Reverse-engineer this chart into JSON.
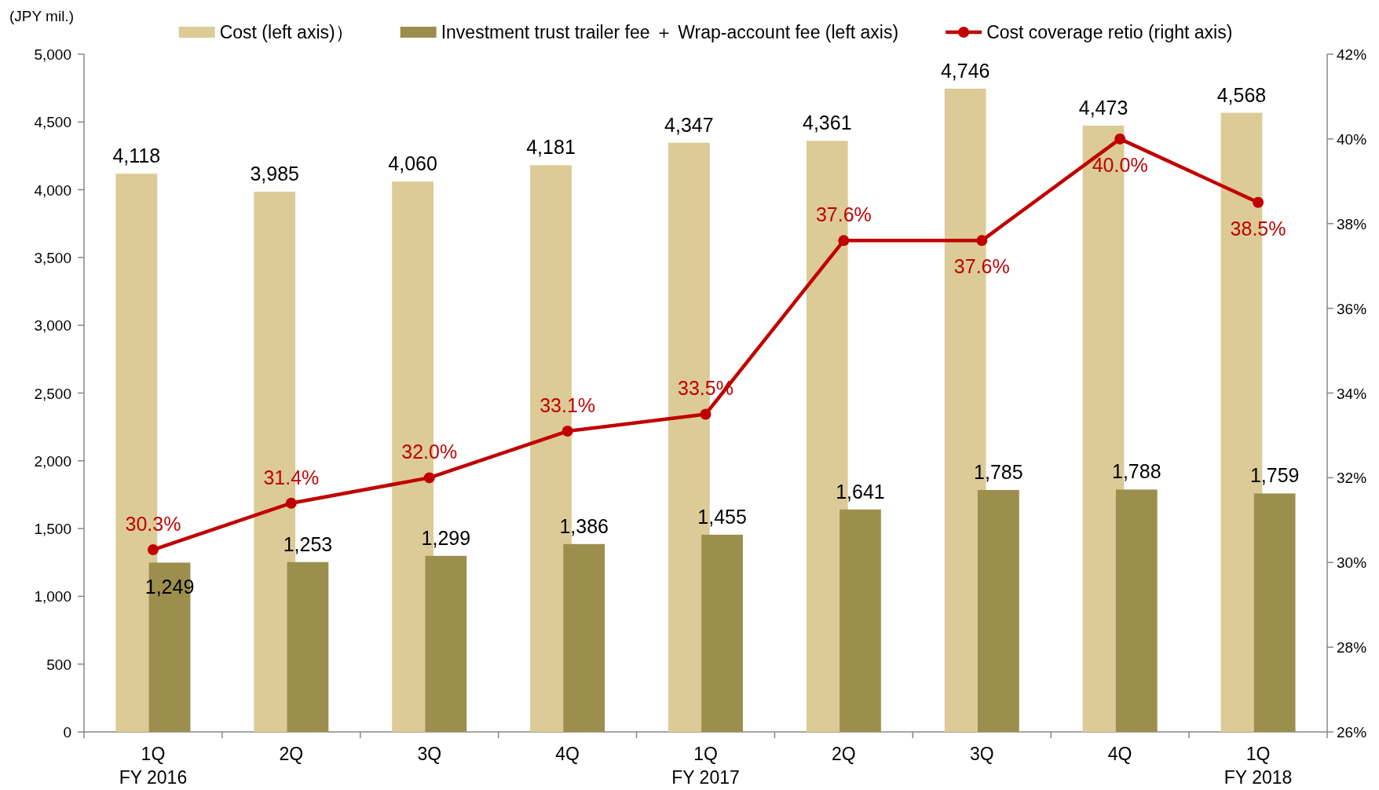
{
  "chart_data": {
    "type": "bar",
    "ylabel": "(JPY mil.)",
    "legend": "top",
    "marker": "circle",
    "categories": [
      "1Q\nFY 2016",
      "2Q",
      "3Q",
      "4Q",
      "1Q\nFY 2017",
      "2Q",
      "3Q",
      "4Q",
      "1Q\nFY 2018"
    ],
    "series": [
      {
        "name": "Cost (left axis)）",
        "color": "#dccb96",
        "values": [
          4118,
          3985,
          4060,
          4181,
          4347,
          4361,
          4746,
          4473,
          4568
        ],
        "value_labels": [
          "4,118",
          "3,985",
          "4,060",
          "4,181",
          "4,347",
          "4,361",
          "4,746",
          "4,473",
          "4,568"
        ]
      },
      {
        "name": "Investment trust trailer fee ＋ Wrap-account  fee (left axis)",
        "color": "#9c8f4e",
        "values": [
          1249,
          1253,
          1299,
          1386,
          1455,
          1641,
          1785,
          1788,
          1759
        ],
        "value_labels": [
          "1,249",
          "1,253",
          "1,299",
          "1,386",
          "1,455",
          "1,641",
          "1,785",
          "1,788",
          "1,759"
        ]
      },
      {
        "name": "Cost coverage retio (right axis)",
        "type": "line",
        "axis": "y2",
        "color": "#c00000",
        "values": [
          30.3,
          31.4,
          32.0,
          33.1,
          33.5,
          37.6,
          37.6,
          40.0,
          38.5
        ],
        "value_labels": [
          "30.3%",
          "31.4%",
          "32.0%",
          "33.1%",
          "33.5%",
          "37.6%",
          "37.6%",
          "40.0%",
          "38.5%"
        ]
      }
    ],
    "ylim": [
      0,
      5000
    ],
    "yticks": [
      {
        "value": 0,
        "label": "0"
      },
      {
        "value": 500,
        "label": "500"
      },
      {
        "value": 1000,
        "label": "1,000"
      },
      {
        "value": 1500,
        "label": "1,500"
      },
      {
        "value": 2000,
        "label": "2,000"
      },
      {
        "value": 2500,
        "label": "2,500"
      },
      {
        "value": 3000,
        "label": "3,000"
      },
      {
        "value": 3500,
        "label": "3,500"
      },
      {
        "value": 4000,
        "label": "4,000"
      },
      {
        "value": 4500,
        "label": "4,500"
      },
      {
        "value": 5000,
        "label": "5,000"
      }
    ],
    "y2lim": [
      26,
      42
    ],
    "y2ticks": [
      {
        "value": 26,
        "label": "26%"
      },
      {
        "value": 28,
        "label": "28%"
      },
      {
        "value": 30,
        "label": "30%"
      },
      {
        "value": 32,
        "label": "32%"
      },
      {
        "value": 34,
        "label": "34%"
      },
      {
        "value": 36,
        "label": "36%"
      },
      {
        "value": 38,
        "label": "38%"
      },
      {
        "value": 40,
        "label": "40%"
      },
      {
        "value": 42,
        "label": "42%"
      }
    ]
  }
}
